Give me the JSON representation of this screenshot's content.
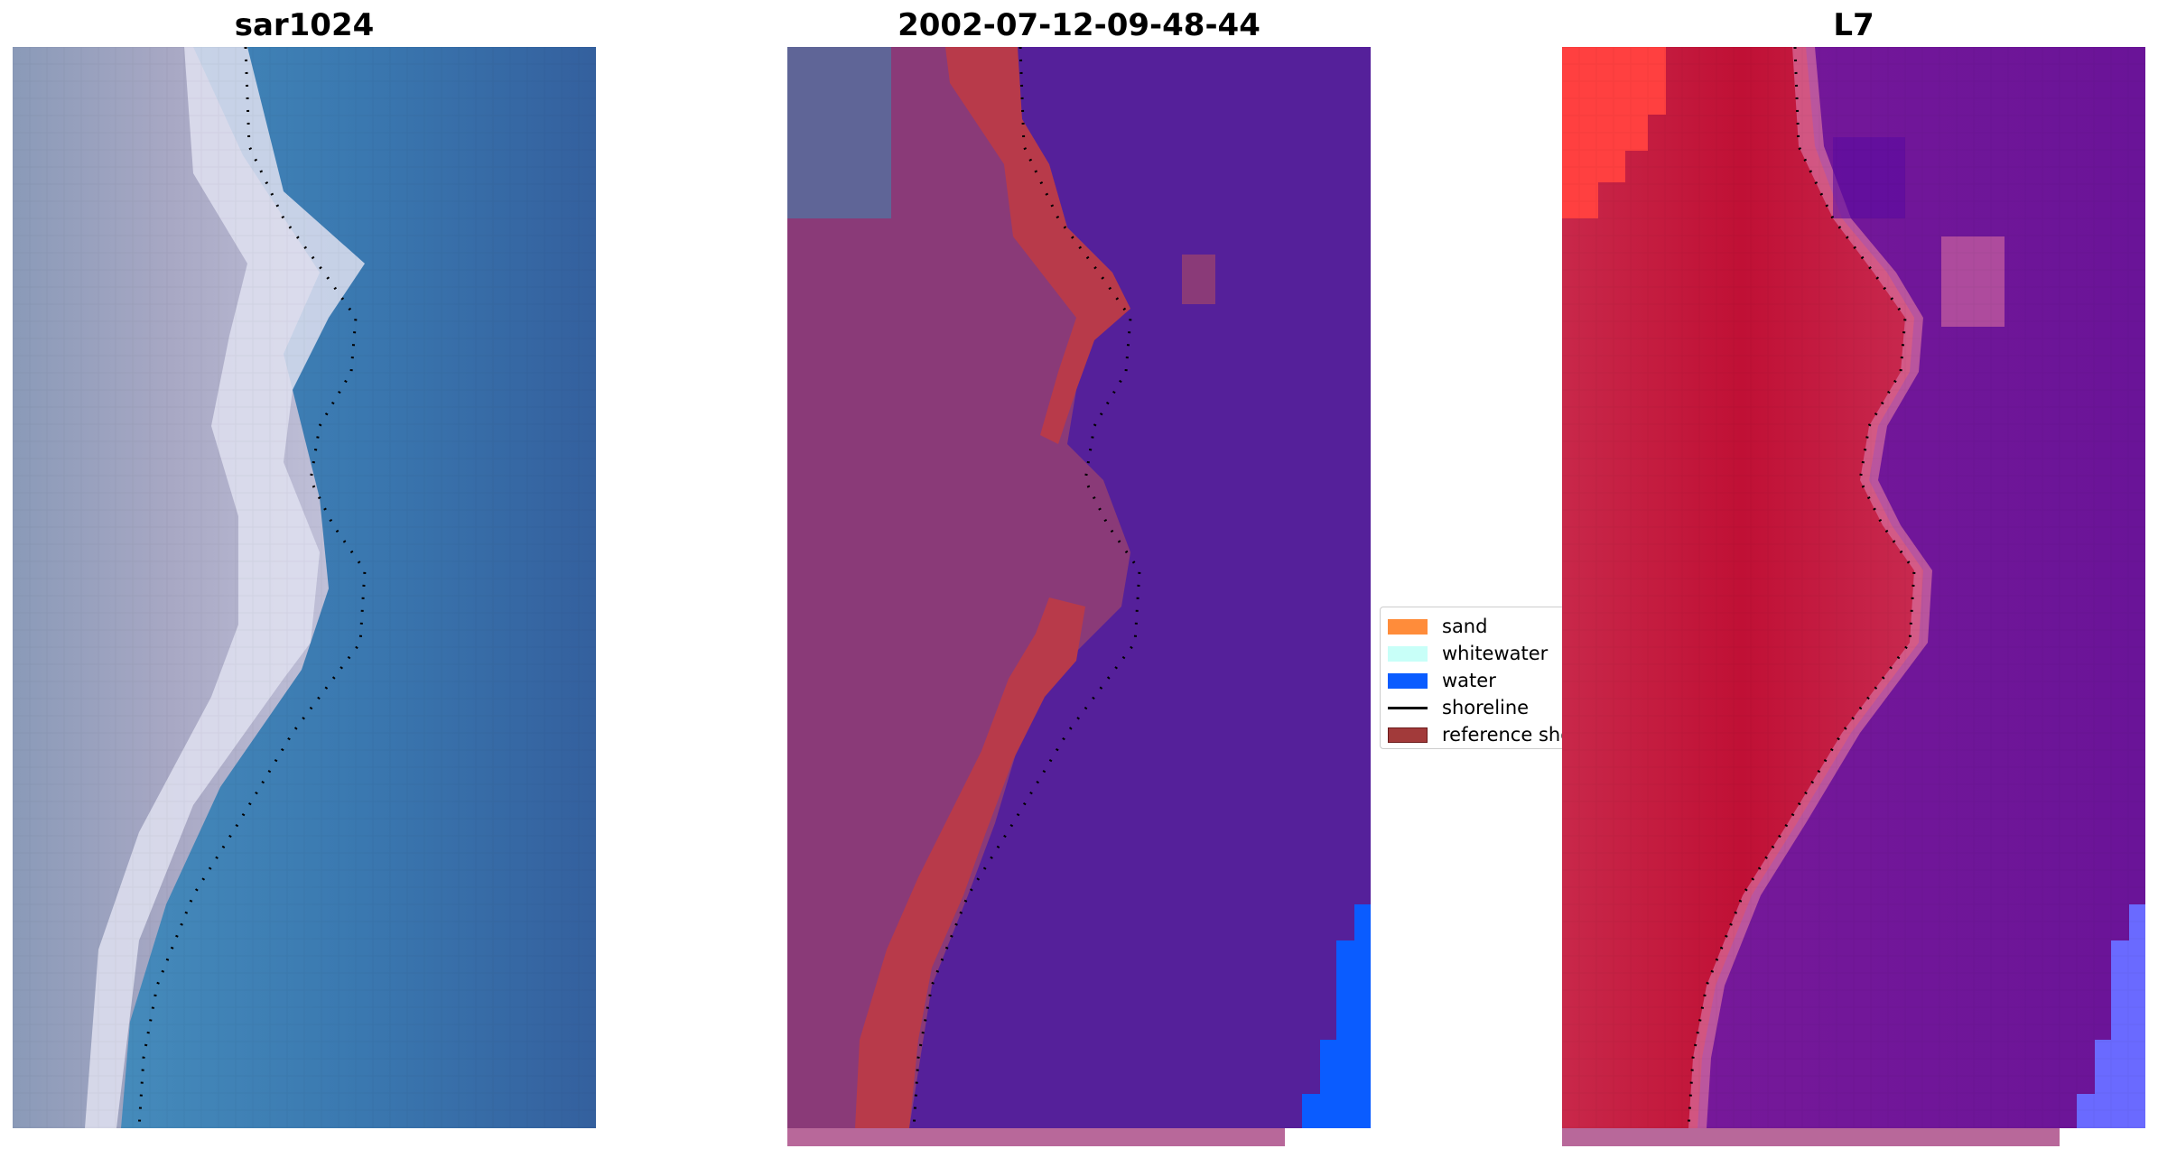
{
  "panels": [
    {
      "title": "sar1024"
    },
    {
      "title": "2002-07-12-09-48-44"
    },
    {
      "title": "L7"
    }
  ],
  "legend": {
    "items": [
      {
        "label": "sand",
        "kind": "patch",
        "color": "#ff8c3a"
      },
      {
        "label": "whitewater",
        "kind": "patch",
        "color": "#c8fff8"
      },
      {
        "label": "water",
        "kind": "patch",
        "color": "#0a5cff"
      },
      {
        "label": "shoreline",
        "kind": "line",
        "color": "#000000"
      },
      {
        "label": "reference shoreline",
        "kind": "patch",
        "color": "#a23a3a"
      }
    ]
  },
  "colors": {
    "rgb_land": "#9c9cb6",
    "rgb_water": "#3a78b0",
    "classified_land": "#8a3a78",
    "classified_water": "#55209a",
    "classified_reference": "#b83a4a",
    "classified_water_class": "#0a5cff",
    "index_land": "#c01035",
    "index_water": "#70149a",
    "index_edge": "#ff4040",
    "nodata_bar": "#b8689a",
    "shoreline": "#000000"
  }
}
